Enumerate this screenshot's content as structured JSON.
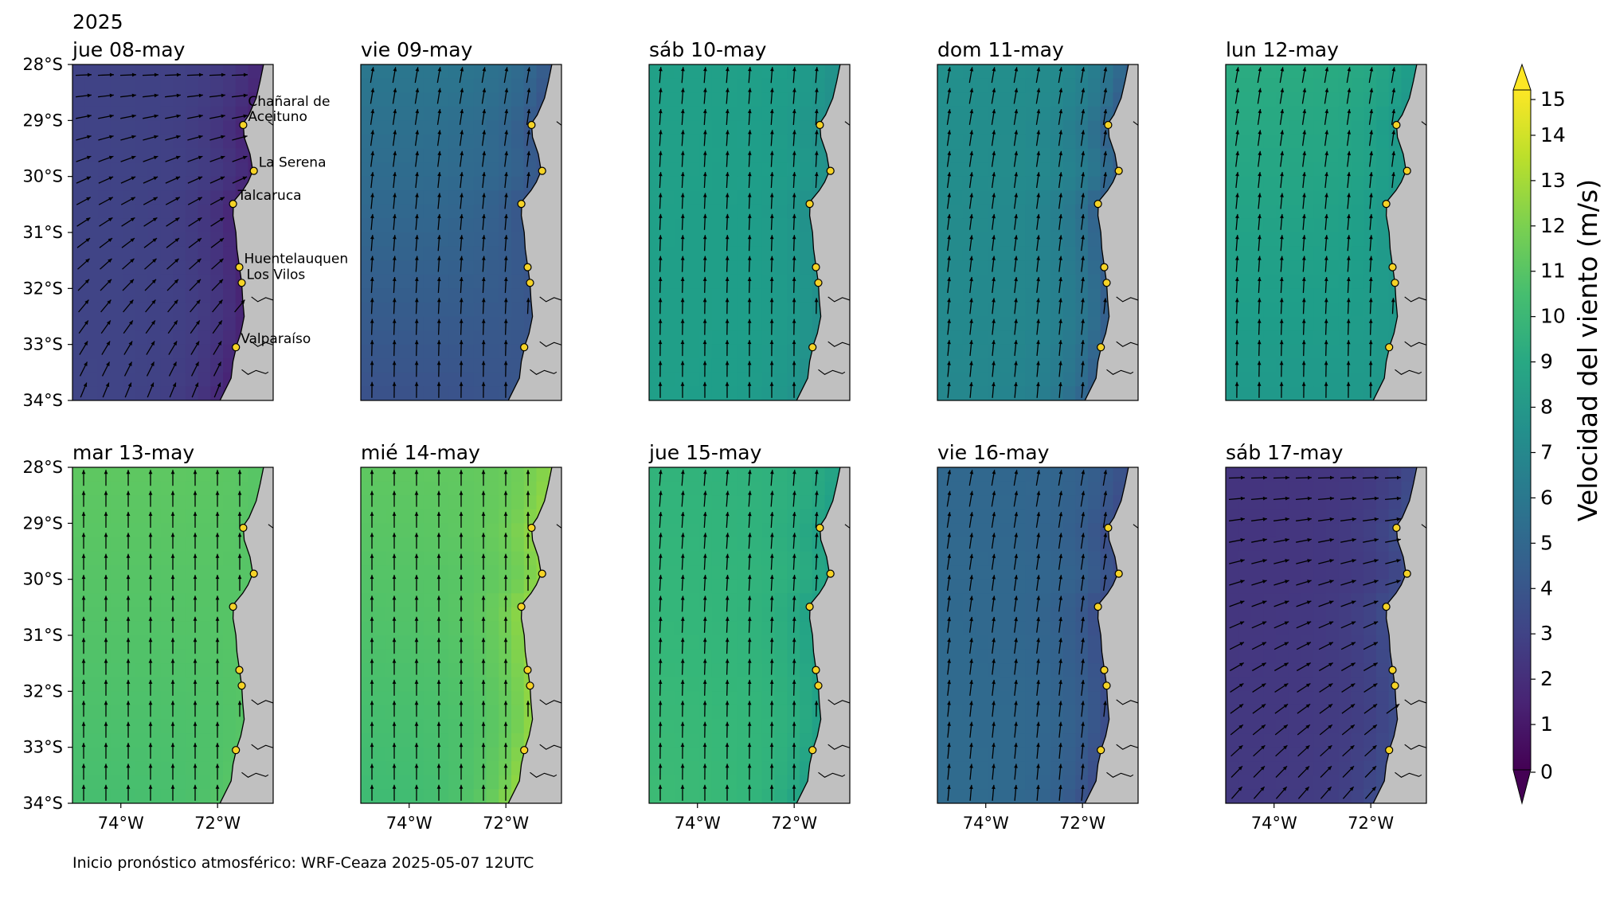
{
  "figure": {
    "year": "2025",
    "footer": "Inicio pronóstico atmosférico: WRF-Ceaza 2025-05-07 12UTC"
  },
  "chart_data": {
    "type": "heatmap",
    "description_kind": "small multiples of wind speed maps with wind direction arrows",
    "colormap": "viridis",
    "land_color": "#c0c0c0",
    "marker_color": "#f5d327",
    "xlim": [
      -75,
      -70.85
    ],
    "ylim": [
      -34,
      -28
    ],
    "x_ticks": [
      "74°W",
      "72°W"
    ],
    "y_ticks": [
      "28°S",
      "29°S",
      "30°S",
      "31°S",
      "32°S",
      "33°S",
      "34°S"
    ],
    "colorbar": {
      "label": "Velocidad del viento (m/s)",
      "min": 0,
      "max": 15,
      "ticks": [
        "0",
        "1",
        "2",
        "3",
        "4",
        "5",
        "6",
        "7",
        "8",
        "9",
        "10",
        "11",
        "12",
        "13",
        "14",
        "15"
      ],
      "extend": "both"
    },
    "locations": [
      {
        "name": "Chañaral de Aceituno",
        "lines": [
          "Chañaral de",
          "Aceituno"
        ],
        "lon": -71.47,
        "lat": -29.08
      },
      {
        "name": "La Serena",
        "lines": [
          "La Serena"
        ],
        "lon": -71.25,
        "lat": -29.9
      },
      {
        "name": "Talcaruca",
        "lines": [
          "Talcaruca"
        ],
        "lon": -71.68,
        "lat": -30.49
      },
      {
        "name": "Huentelauquen",
        "lines": [
          "Huentelauquen"
        ],
        "lon": -71.55,
        "lat": -31.62
      },
      {
        "name": "Los Vilos",
        "lines": [
          "Los Vilos"
        ],
        "lon": -71.5,
        "lat": -31.9
      },
      {
        "name": "Valparaíso",
        "lines": [
          "Valparaíso"
        ],
        "lon": -71.62,
        "lat": -33.05
      }
    ],
    "panels": [
      {
        "title": "jue 08-may",
        "speed": {
          "offshore": 3.2,
          "coast": 1.5,
          "north": 2.8,
          "south": 3.0
        },
        "dir": {
          "north": 270,
          "south": 200
        }
      },
      {
        "title": "vie 09-may",
        "speed": {
          "offshore": 5.0,
          "coast": 4.0,
          "north": 7.0,
          "south": 2.5
        },
        "dir": {
          "north": 190,
          "south": 180
        }
      },
      {
        "title": "sáb 10-may",
        "speed": {
          "offshore": 8.5,
          "coast": 7.5,
          "north": 8.5,
          "south": 8.3
        },
        "dir": {
          "north": 185,
          "south": 180
        }
      },
      {
        "title": "dom 11-may",
        "speed": {
          "offshore": 7.5,
          "coast": 4.5,
          "north": 7.5,
          "south": 6.5
        },
        "dir": {
          "north": 190,
          "south": 185
        }
      },
      {
        "title": "lun 12-may",
        "speed": {
          "offshore": 9.0,
          "coast": 8.0,
          "north": 9.5,
          "south": 7.0
        },
        "dir": {
          "north": 190,
          "south": 180
        }
      },
      {
        "title": "mar 13-may",
        "speed": {
          "offshore": 11.5,
          "coast": 11.0,
          "north": 11.0,
          "south": 9.5
        },
        "dir": {
          "north": 180,
          "south": 180
        }
      },
      {
        "title": "mié 14-may",
        "speed": {
          "offshore": 11.5,
          "coast": 12.5,
          "north": 11.0,
          "south": 9.0
        },
        "dir": {
          "north": 180,
          "south": 180
        }
      },
      {
        "title": "jue 15-may",
        "speed": {
          "offshore": 10.0,
          "coast": 8.5,
          "north": 9.5,
          "south": 10.5
        },
        "dir": {
          "north": 185,
          "south": 180
        }
      },
      {
        "title": "vie 16-may",
        "speed": {
          "offshore": 5.0,
          "coast": 3.5,
          "north": 5.0,
          "south": 5.5
        },
        "dir": {
          "north": 190,
          "south": 185
        }
      },
      {
        "title": "sáb 17-may",
        "speed": {
          "offshore": 3.0,
          "coast": 3.5,
          "north": 1.5,
          "south": 2.0
        },
        "dir": {
          "north": 270,
          "south": 220
        }
      }
    ]
  }
}
